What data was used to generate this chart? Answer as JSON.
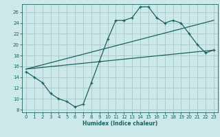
{
  "xlabel": "Humidex (Indice chaleur)",
  "xlim": [
    -0.5,
    23.5
  ],
  "ylim": [
    7.5,
    27.5
  ],
  "yticks": [
    8,
    10,
    12,
    14,
    16,
    18,
    20,
    22,
    24,
    26
  ],
  "xticks": [
    0,
    1,
    2,
    3,
    4,
    5,
    6,
    7,
    8,
    9,
    10,
    11,
    12,
    13,
    14,
    15,
    16,
    17,
    18,
    19,
    20,
    21,
    22,
    23
  ],
  "bg_color": "#cce8e8",
  "grid_color": "#aacccc",
  "line_color": "#1a6060",
  "main_x": [
    0,
    1,
    2,
    3,
    4,
    5,
    6,
    7,
    8,
    9,
    10,
    11,
    12,
    13,
    14,
    15,
    16,
    17,
    18,
    19,
    20,
    21,
    22,
    23
  ],
  "main_y": [
    15,
    14,
    13,
    11,
    10,
    9.5,
    8.5,
    9,
    13,
    17,
    21,
    24.5,
    24.5,
    25,
    27,
    27,
    25,
    24,
    24.5,
    24,
    22,
    20,
    18.5,
    19
  ],
  "line1_x": [
    0,
    23
  ],
  "line1_y": [
    15.5,
    19.0
  ],
  "line2_x": [
    0,
    23
  ],
  "line2_y": [
    15.5,
    24.5
  ]
}
